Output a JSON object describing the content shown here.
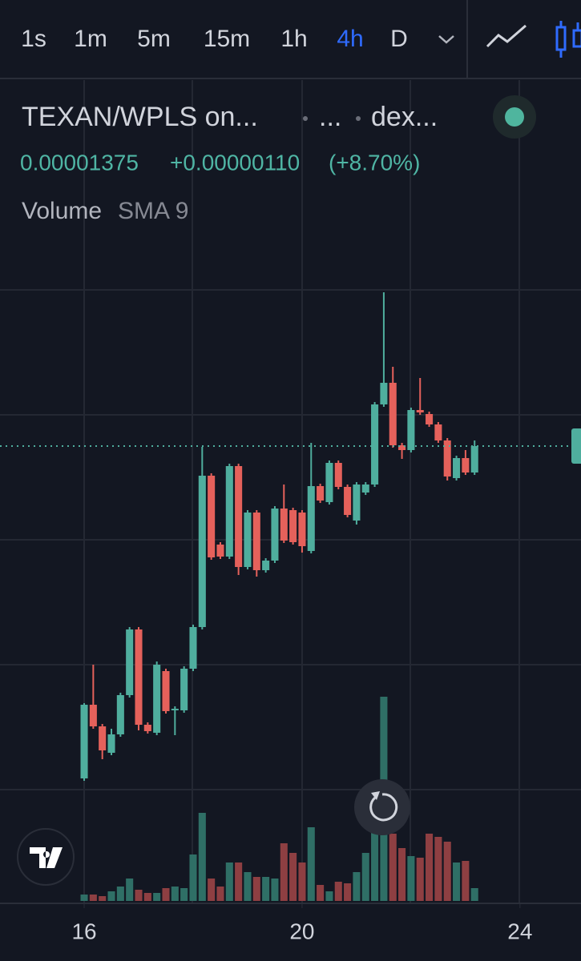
{
  "toolbar": {
    "intervals": [
      "1s",
      "1m",
      "5m",
      "15m",
      "1h",
      "4h",
      "D"
    ],
    "active": "4h"
  },
  "legend": {
    "symbol": "TEXAN/WPLS on...",
    "exchange": "...",
    "source": "dex...",
    "price": "0.00001375",
    "change": "+0.00000110",
    "change_percent": "(+8.70%)",
    "indicator": "Volume",
    "indicator_params": "SMA 9"
  },
  "chart_data": {
    "type": "candlestick",
    "open": [
      9.6e-06,
      1.052e-05,
      1.025e-05,
      9.92e-06,
      1.015e-05,
      1.064e-05,
      1.146e-05,
      1.027e-05,
      1.017e-05,
      1.094e-05,
      1.045e-05,
      1.045e-05,
      1.097e-05,
      1.149e-05,
      1.338e-05,
      1.252e-05,
      1.237e-05,
      1.35e-05,
      1.224e-05,
      1.292e-05,
      1.22e-05,
      1.232e-05,
      1.297e-05,
      1.295e-05,
      1.292e-05,
      1.244e-05,
      1.325e-05,
      1.305e-05,
      1.354e-05,
      1.324e-05,
      1.282e-05,
      1.317e-05,
      1.327e-05,
      1.427e-05,
      1.454e-05,
      1.376e-05,
      1.37e-05,
      1.42e-05,
      1.415e-05,
      1.402e-05,
      1.382e-05,
      1.335e-05,
      1.36e-05,
      1.342e-05
    ],
    "high": [
      1.054e-05,
      1.102e-05,
      1.028e-05,
      1.022e-05,
      1.067e-05,
      1.149e-05,
      1.149e-05,
      1.03e-05,
      1.106e-05,
      1.097e-05,
      1.05e-05,
      1.1e-05,
      1.152e-05,
      1.374e-05,
      1.341e-05,
      1.255e-05,
      1.353e-05,
      1.353e-05,
      1.295e-05,
      1.295e-05,
      1.235e-05,
      1.3e-05,
      1.327e-05,
      1.298e-05,
      1.295e-05,
      1.379e-05,
      1.328e-05,
      1.357e-05,
      1.357e-05,
      1.327e-05,
      1.33e-05,
      1.33e-05,
      1.43e-05,
      1.567e-05,
      1.474e-05,
      1.379e-05,
      1.423e-05,
      1.46e-05,
      1.418e-05,
      1.405e-05,
      1.385e-05,
      1.363e-05,
      1.37e-05,
      1.382e-05
    ],
    "low": [
      9.57e-06,
      1.022e-05,
      9.84e-06,
      9.89e-06,
      1.012e-05,
      1.061e-05,
      1.02e-05,
      1.016e-05,
      1.014e-05,
      1.041e-05,
      1.014e-05,
      1.042e-05,
      1.094e-05,
      1.146e-05,
      1.233e-05,
      1.234e-05,
      1.234e-05,
      1.214e-05,
      1.221e-05,
      1.212e-05,
      1.217e-05,
      1.229e-05,
      1.254e-05,
      1.252e-05,
      1.242e-05,
      1.241e-05,
      1.304e-05,
      1.302e-05,
      1.321e-05,
      1.286e-05,
      1.277e-05,
      1.314e-05,
      1.324e-05,
      1.424e-05,
      1.373e-05,
      1.359e-05,
      1.367e-05,
      1.414e-05,
      1.399e-05,
      1.379e-05,
      1.332e-05,
      1.332e-05,
      1.339e-05,
      1.339e-05
    ],
    "close": [
      1.052e-05,
      1.025e-05,
      9.95e-06,
      1.015e-05,
      1.064e-05,
      1.146e-05,
      1.027e-05,
      1.019e-05,
      1.102e-05,
      1.044e-05,
      1.047e-05,
      1.097e-05,
      1.149e-05,
      1.338e-05,
      1.236e-05,
      1.237e-05,
      1.35e-05,
      1.224e-05,
      1.292e-05,
      1.22e-05,
      1.232e-05,
      1.297e-05,
      1.257e-05,
      1.255e-05,
      1.25e-05,
      1.325e-05,
      1.307e-05,
      1.354e-05,
      1.324e-05,
      1.289e-05,
      1.327e-05,
      1.327e-05,
      1.427e-05,
      1.454e-05,
      1.376e-05,
      1.37e-05,
      1.42e-05,
      1.417e-05,
      1.402e-05,
      1.382e-05,
      1.337e-05,
      1.36e-05,
      1.342e-05,
      1.375e-05
    ],
    "volume": [
      8,
      8,
      6,
      12,
      18,
      28,
      14,
      10,
      10,
      16,
      18,
      16,
      58,
      110,
      28,
      18,
      48,
      48,
      36,
      30,
      30,
      28,
      72,
      60,
      48,
      92,
      20,
      12,
      24,
      22,
      36,
      60,
      86,
      255,
      84,
      66,
      56,
      54,
      84,
      80,
      74,
      48,
      50,
      16
    ],
    "up_color": "#4fae9e",
    "down_color": "#e5615b",
    "volume_up_color": "#2f6f66",
    "volume_down_color": "#8e3f42",
    "ylim": [
      8.04e-06,
      1.832e-05
    ],
    "xlim": [
      -9.27,
      54.72
    ],
    "xticks": [
      {
        "value": 0,
        "label": "16"
      },
      {
        "value": 24,
        "label": "20"
      },
      {
        "value": 48,
        "label": "24"
      }
    ]
  }
}
